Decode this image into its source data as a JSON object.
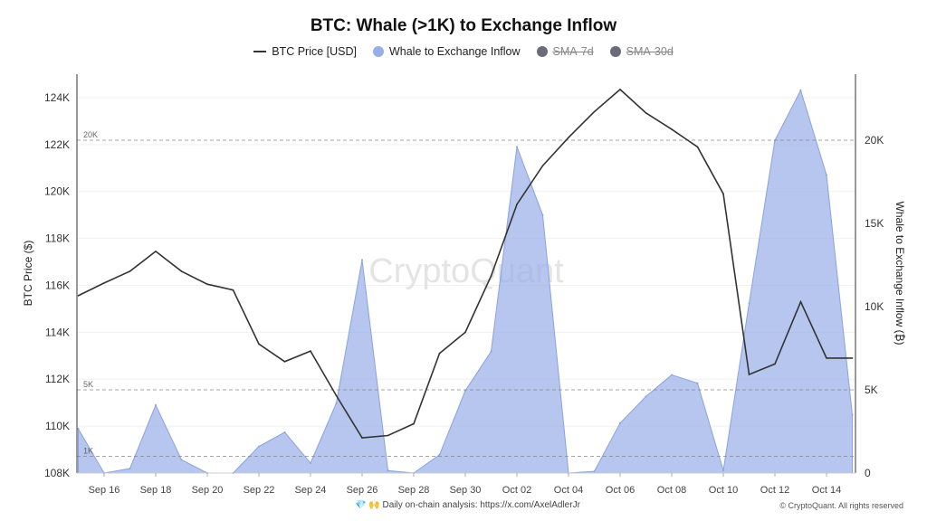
{
  "chart_data": {
    "type": "line",
    "title": "BTC: Whale (>1K) to Exchange Inflow",
    "legend": [
      {
        "name": "BTC Price [USD]",
        "color": "#333333",
        "enabled": true
      },
      {
        "name": "Whale to Exchange Inflow",
        "color": "#97aee8",
        "enabled": true
      },
      {
        "name": "SMA-7d",
        "color": "#6b6b7b",
        "enabled": false
      },
      {
        "name": "SMA-30d",
        "color": "#6b6b7b",
        "enabled": false
      }
    ],
    "legend_placement": "top",
    "x": [
      "Sep 15",
      "Sep 16",
      "Sep 17",
      "Sep 18",
      "Sep 19",
      "Sep 20",
      "Sep 21",
      "Sep 22",
      "Sep 23",
      "Sep 24",
      "Sep 25",
      "Sep 26",
      "Sep 27",
      "Sep 28",
      "Sep 29",
      "Sep 30",
      "Oct 01",
      "Oct 02",
      "Oct 03",
      "Oct 04",
      "Oct 05",
      "Oct 06",
      "Oct 07",
      "Oct 08",
      "Oct 09",
      "Oct 10",
      "Oct 11",
      "Oct 12",
      "Oct 13",
      "Oct 14",
      "Oct 15"
    ],
    "x_ticks": [
      "Sep 16",
      "Sep 18",
      "Sep 20",
      "Sep 22",
      "Sep 24",
      "Sep 26",
      "Sep 28",
      "Sep 30",
      "Oct 02",
      "Oct 04",
      "Oct 06",
      "Oct 08",
      "Oct 10",
      "Oct 12",
      "Oct 14"
    ],
    "series": [
      {
        "name": "BTC Price [USD]",
        "type": "line",
        "axis": "left",
        "color": "#333333",
        "values": [
          115.56,
          116.1,
          116.6,
          117.45,
          116.6,
          116.05,
          115.8,
          113.5,
          112.75,
          113.2,
          111.3,
          109.5,
          109.6,
          110.1,
          113.1,
          114.0,
          116.4,
          119.45,
          121.1,
          122.3,
          123.4,
          124.35,
          123.35,
          122.65,
          121.9,
          119.9,
          112.2,
          112.65,
          115.3,
          112.9,
          112.9
        ]
      },
      {
        "name": "Whale to Exchange Inflow",
        "type": "area",
        "axis": "right",
        "color": "#97aee8",
        "values": [
          2.66,
          0,
          0.27,
          4.08,
          0.8,
          0,
          0,
          1.6,
          2.45,
          0.6,
          4.2,
          12.8,
          0.15,
          0,
          1.1,
          4.95,
          7.3,
          19.6,
          15.5,
          0,
          0.1,
          3.0,
          4.6,
          5.9,
          5.4,
          0.15,
          10.2,
          20.0,
          23.0,
          17.9,
          3.5
        ]
      }
    ],
    "left_axis": {
      "label": "BTC Price ($)",
      "range": [
        108,
        124.6
      ],
      "ticks": [
        "108K",
        "110K",
        "112K",
        "114K",
        "116K",
        "118K",
        "120K",
        "122K",
        "124K"
      ],
      "unit": "K USD"
    },
    "right_axis": {
      "label": "Whale to Exchange Inflow (₿)",
      "range": [
        0,
        24.2
      ],
      "ticks": [
        "0",
        "5K",
        "10K",
        "15K",
        "20K"
      ],
      "unit": "K BTC"
    },
    "reference_lines": [
      {
        "value": 20,
        "label": "20K"
      },
      {
        "value": 5,
        "label": "5K"
      },
      {
        "value": 1,
        "label": "1K"
      }
    ],
    "grid": true,
    "watermark": "CryptoQuant"
  },
  "footer": {
    "emoji": "💎 🙌",
    "text": "Daily on-chain analysis:",
    "link": "https://x.com/AxelAdlerJr",
    "copyright": "© CryptoQuant. All rights reserved"
  }
}
